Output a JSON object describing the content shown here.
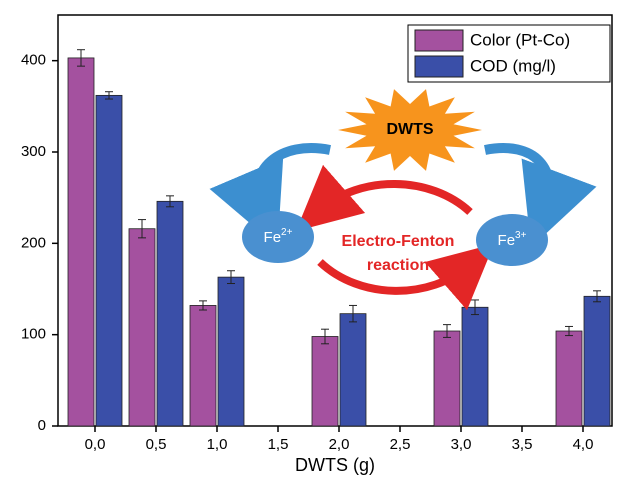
{
  "chart_data": {
    "type": "bar",
    "x_label": "DWTS (g)",
    "categories": [
      "0,0",
      "0,5",
      "1,0",
      "1,5",
      "2,0",
      "2,5",
      "3,0",
      "3,5",
      "4,0"
    ],
    "series": [
      {
        "name": "Color (Pt-Co)",
        "color": "#a4519f",
        "values": [
          403,
          216,
          132,
          null,
          98,
          null,
          104,
          null,
          104
        ],
        "errors": [
          9,
          10,
          5,
          null,
          8,
          null,
          7,
          null,
          5
        ]
      },
      {
        "name": "COD (mg/l)",
        "color": "#3a4fa8",
        "values": [
          362,
          246,
          163,
          null,
          123,
          null,
          130,
          null,
          142
        ],
        "errors": [
          4,
          6,
          7,
          null,
          9,
          null,
          8,
          null,
          6
        ]
      }
    ],
    "ylim": [
      0,
      450
    ],
    "yticks": [
      0,
      100,
      200,
      300,
      400
    ],
    "grid": false,
    "legend": "top-right"
  },
  "inset": {
    "source": "DWTS",
    "left": {
      "text": "Fe",
      "sup": "2+"
    },
    "right": {
      "text": "Fe",
      "sup": "3+"
    },
    "reaction": [
      "Electro-Fenton",
      "reaction"
    ]
  }
}
